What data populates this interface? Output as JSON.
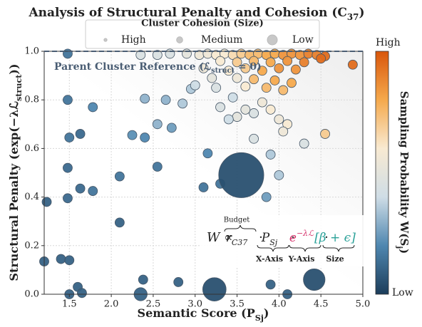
{
  "chart_data": {
    "type": "scatter",
    "title": [
      {
        "text": "Analysis of Structural Penalty and Cohesion (C"
      },
      {
        "text": "37",
        "sub": true
      },
      {
        "text": ")"
      }
    ],
    "x_label": [
      {
        "text": "Semantic Score (P"
      },
      {
        "text": "Sj",
        "sub": true
      },
      {
        "text": ")"
      }
    ],
    "y_label": [
      {
        "text": "Structural Penalty (exp(−λℒ"
      },
      {
        "text": "struct",
        "sub": true
      },
      {
        "text": "))"
      }
    ],
    "xlim": [
      1.2,
      5.0
    ],
    "xticks": [
      1.5,
      {
        "value": 2,
        "label": "2.0"
      },
      2.5,
      {
        "value": 3,
        "label": "3.0"
      },
      3.5,
      {
        "value": 4,
        "label": "4.0"
      },
      4.5,
      {
        "value": 5,
        "label": "5.0"
      }
    ],
    "ylim": [
      0,
      1.0
    ],
    "yticks": [
      {
        "value": 0,
        "label": "0.0"
      },
      0.2,
      0.4,
      0.6,
      0.8,
      {
        "value": 1,
        "label": "1.0"
      }
    ],
    "grid": true,
    "reference_line": {
      "value": 1.0,
      "color": "#4a5d73",
      "label": [
        {
          "text": "Parent Cluster Reference (ℒ"
        },
        {
          "text": "struct",
          "sub": true
        },
        {
          "text": " = 0)"
        }
      ]
    },
    "colormap": [
      "#1c3d5a",
      "#4f87b0",
      "#cfdde6",
      "#f8ead2",
      "#f5a94c",
      "#d9560b"
    ],
    "colorbar": {
      "title": [
        {
          "text": "Sampling Probability W(S"
        },
        {
          "text": "j",
          "sub": true
        },
        {
          "text": ")"
        }
      ],
      "high": "High",
      "low": "Low"
    },
    "size_legend": {
      "title": "Cluster Cohesion (Size)",
      "entries": [
        {
          "name": "High",
          "size": 40
        },
        {
          "name": "Medium",
          "size": 160
        },
        {
          "name": "Low",
          "size": 420
        }
      ]
    },
    "formula": {
      "lhs": "W ∝",
      "separator": "·",
      "terms": [
        {
          "symbol": "r",
          "sub": "C37",
          "label": "Budget",
          "over": true,
          "color": "#222222"
        },
        {
          "symbol": "P",
          "sub": "Sj",
          "label": "X-Axis",
          "color": "#222222"
        },
        {
          "symbol": "e",
          "sup": "−λℒ",
          "label": "Y-Axis",
          "color": "#d6336c"
        },
        {
          "symbol": "[β + ϵ]",
          "label": "Size",
          "color": "#2aa198"
        }
      ]
    },
    "series": [
      {
        "x": [
          1.48,
          1.48,
          1.5,
          1.63,
          1.78,
          1.48,
          1.48,
          1.63,
          1.78,
          1.23,
          2.1,
          2.1,
          2.25,
          2.4,
          2.4,
          2.55,
          2.55,
          2.72,
          2.65,
          2.85,
          2.95,
          3.15,
          3.1,
          3.3,
          3.85,
          3.9,
          4.0,
          1.2,
          1.4,
          1.5,
          1.5,
          1.6,
          1.65,
          2.38,
          2.8,
          3.9,
          4.1,
          2.35,
          3.23,
          4.42,
          2.35,
          2.55,
          2.7,
          2.9,
          3.05,
          3.15,
          3.25,
          3.35,
          3.45,
          3.55,
          3.65,
          3.75,
          3.85,
          3.95,
          4.05,
          4.15,
          4.25,
          4.35,
          4.45,
          4.55,
          4.88,
          3.3,
          3.5,
          3.7,
          3.9,
          4.1,
          4.3,
          4.5,
          3.1,
          3.4,
          3.6,
          3.8,
          4.0,
          4.2,
          3.2,
          3.5,
          3.7,
          3.95,
          4.15,
          3.25,
          3.45,
          3.6,
          3.85,
          4.05,
          3.0,
          3.3,
          3.5,
          3.7,
          3.9,
          4.0,
          4.1,
          4.05,
          3.6,
          3.8,
          4.3,
          4.55,
          3.7,
          3.4,
          3.55
        ],
        "values": [
          0.99,
          0.8,
          0.645,
          0.66,
          0.77,
          0.52,
          0.395,
          0.435,
          0.425,
          0.38,
          0.485,
          0.295,
          0.655,
          0.645,
          0.805,
          0.7,
          0.525,
          0.685,
          0.8,
          0.785,
          0.845,
          0.58,
          0.44,
          0.455,
          0.4,
          0.575,
          0.49,
          0.135,
          0.145,
          0.14,
          0.0,
          0.03,
          0.005,
          0.06,
          0.05,
          0.04,
          0.0,
          0.0,
          0.02,
          0.06,
          0.985,
          0.985,
          0.99,
          0.99,
          0.985,
          0.99,
          0.985,
          0.99,
          0.985,
          0.99,
          0.985,
          0.99,
          0.985,
          0.99,
          0.985,
          0.99,
          0.985,
          0.99,
          0.985,
          0.98,
          0.945,
          0.96,
          0.955,
          0.96,
          0.955,
          0.96,
          0.955,
          0.97,
          0.93,
          0.92,
          0.93,
          0.92,
          0.93,
          0.925,
          0.89,
          0.89,
          0.885,
          0.88,
          0.87,
          0.85,
          0.81,
          0.855,
          0.85,
          0.84,
          0.86,
          0.77,
          0.73,
          0.745,
          0.76,
          0.72,
          0.7,
          0.67,
          0.76,
          0.79,
          0.62,
          0.66,
          0.64,
          0.72,
          0.49
        ],
        "sizes": [
          110,
          110,
          110,
          110,
          110,
          110,
          110,
          110,
          110,
          110,
          110,
          110,
          110,
          110,
          110,
          110,
          110,
          110,
          110,
          110,
          110,
          110,
          110,
          110,
          110,
          110,
          110,
          110,
          110,
          110,
          110,
          110,
          110,
          110,
          110,
          110,
          110,
          220,
          700,
          600,
          110,
          110,
          110,
          110,
          110,
          110,
          110,
          110,
          110,
          110,
          110,
          110,
          110,
          110,
          110,
          110,
          110,
          110,
          110,
          110,
          110,
          110,
          110,
          110,
          110,
          110,
          110,
          110,
          110,
          110,
          110,
          110,
          110,
          110,
          110,
          110,
          110,
          110,
          110,
          110,
          110,
          110,
          110,
          110,
          110,
          110,
          110,
          110,
          110,
          110,
          110,
          110,
          110,
          110,
          110,
          110,
          110,
          110,
          2600
        ],
        "color_values": [
          0.15,
          0.15,
          0.15,
          0.12,
          0.2,
          0.12,
          0.12,
          0.12,
          0.15,
          0.1,
          0.15,
          0.1,
          0.22,
          0.2,
          0.3,
          0.3,
          0.15,
          0.25,
          0.3,
          0.35,
          0.35,
          0.2,
          0.15,
          0.15,
          0.25,
          0.35,
          0.35,
          0.1,
          0.1,
          0.1,
          0.1,
          0.1,
          0.1,
          0.1,
          0.1,
          0.1,
          0.1,
          0.1,
          0.05,
          0.05,
          0.45,
          0.45,
          0.45,
          0.5,
          0.55,
          0.55,
          0.6,
          0.6,
          0.65,
          0.7,
          0.75,
          0.75,
          0.8,
          0.8,
          0.85,
          0.85,
          0.85,
          0.9,
          0.9,
          0.95,
          0.95,
          0.6,
          0.7,
          0.75,
          0.8,
          0.85,
          0.9,
          0.95,
          0.55,
          0.6,
          0.7,
          0.8,
          0.85,
          0.85,
          0.5,
          0.55,
          0.75,
          0.8,
          0.8,
          0.45,
          0.4,
          0.6,
          0.75,
          0.75,
          0.4,
          0.45,
          0.5,
          0.45,
          0.6,
          0.55,
          0.6,
          0.55,
          0.5,
          0.55,
          0.45,
          0.7,
          0.45,
          0.4,
          0.05
        ]
      }
    ]
  }
}
